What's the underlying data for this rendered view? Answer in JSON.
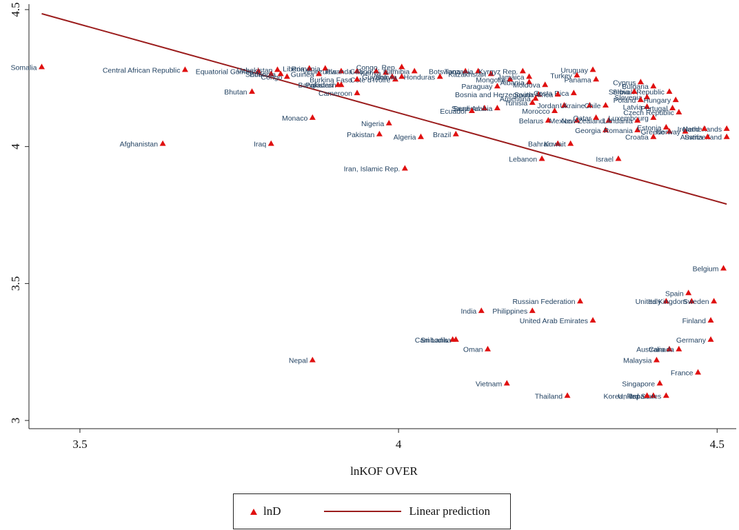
{
  "chart_data": {
    "type": "scatter",
    "title": "",
    "xlabel": "lnKOF OVER",
    "ylabel": "",
    "xlim": [
      3.42,
      4.53
    ],
    "ylim": [
      2.97,
      4.52
    ],
    "xticks": [
      "3.5",
      "4",
      "4.5"
    ],
    "yticks": [
      "3",
      "3.5",
      "4",
      "4.5"
    ],
    "xtick_values": [
      3.5,
      4.0,
      4.5
    ],
    "ytick_values": [
      3.0,
      3.5,
      4.0,
      4.5
    ],
    "grid": false,
    "legend_position": "bottom-center",
    "marker_color": "#e01010",
    "line_color": "#9b1c1c",
    "label_color": "#1f3f5f",
    "series": [
      {
        "name": "lnD",
        "kind": "scatter",
        "points": [
          {
            "label": "Somalia",
            "x": 3.44,
            "y": 4.29
          },
          {
            "label": "Central African Republic",
            "x": 3.665,
            "y": 4.28
          },
          {
            "label": "Equatorial Guinea",
            "x": 3.78,
            "y": 4.275
          },
          {
            "label": "Uzbekistan",
            "x": 3.81,
            "y": 4.28
          },
          {
            "label": "Liberia",
            "x": 3.86,
            "y": 4.285
          },
          {
            "label": "Romania",
            "x": 3.885,
            "y": 4.285
          },
          {
            "label": "Venezuela",
            "x": 3.91,
            "y": 4.275
          },
          {
            "label": "Rwanda",
            "x": 3.935,
            "y": 4.275
          },
          {
            "label": "Gabon",
            "x": 3.965,
            "y": 4.275
          },
          {
            "label": "Kenya",
            "x": 3.98,
            "y": 4.27
          },
          {
            "label": "Congo, Rep.",
            "x": 4.005,
            "y": 4.29
          },
          {
            "label": "Namibia",
            "x": 4.025,
            "y": 4.275
          },
          {
            "label": "Sudan",
            "x": 3.8,
            "y": 4.265
          },
          {
            "label": "Ethiopia",
            "x": 3.815,
            "y": 4.265
          },
          {
            "label": "Guinea",
            "x": 3.875,
            "y": 4.265
          },
          {
            "label": "Congo",
            "x": 3.825,
            "y": 4.255
          },
          {
            "label": "Guyana",
            "x": 3.99,
            "y": 4.255
          },
          {
            "label": "Cote d'Ivoire",
            "x": 3.995,
            "y": 4.245
          },
          {
            "label": "Burkina Faso",
            "x": 3.935,
            "y": 4.245
          },
          {
            "label": "Bolivia",
            "x": 4.005,
            "y": 4.255
          },
          {
            "label": "Honduras",
            "x": 4.065,
            "y": 4.255
          },
          {
            "label": "Bangladesh",
            "x": 3.91,
            "y": 4.225
          },
          {
            "label": "Pakistan",
            "x": 3.905,
            "y": 4.225
          },
          {
            "label": "Cameroon",
            "x": 3.935,
            "y": 4.195
          },
          {
            "label": "Bhutan",
            "x": 3.77,
            "y": 4.2
          },
          {
            "label": "Monaco",
            "x": 3.865,
            "y": 4.105
          },
          {
            "label": "Afghanistan",
            "x": 3.63,
            "y": 4.01
          },
          {
            "label": "Iraq",
            "x": 3.8,
            "y": 4.01
          },
          {
            "label": "Nigeria",
            "x": 3.985,
            "y": 4.085
          },
          {
            "label": "Pakistan",
            "x": 3.97,
            "y": 4.045
          },
          {
            "label": "Algeria",
            "x": 4.035,
            "y": 4.035
          },
          {
            "label": "Brazil",
            "x": 4.09,
            "y": 4.045
          },
          {
            "label": "Iran, Islamic Rep.",
            "x": 4.01,
            "y": 3.92
          },
          {
            "label": "Botswana",
            "x": 4.105,
            "y": 4.275
          },
          {
            "label": "Tanzania",
            "x": 4.125,
            "y": 4.275
          },
          {
            "label": "Kazakhstan",
            "x": 4.145,
            "y": 4.265
          },
          {
            "label": "Kyrgyz Rep.",
            "x": 4.195,
            "y": 4.275
          },
          {
            "label": "Mongolia",
            "x": 4.175,
            "y": 4.245
          },
          {
            "label": "Jamaica",
            "x": 4.205,
            "y": 4.255
          },
          {
            "label": "Albania",
            "x": 4.205,
            "y": 4.235
          },
          {
            "label": "Moldova",
            "x": 4.23,
            "y": 4.225
          },
          {
            "label": "Uruguay",
            "x": 4.305,
            "y": 4.28
          },
          {
            "label": "Turkey",
            "x": 4.28,
            "y": 4.26
          },
          {
            "label": "Panama",
            "x": 4.31,
            "y": 4.245
          },
          {
            "label": "Paraguay",
            "x": 4.155,
            "y": 4.22
          },
          {
            "label": "Bosnia and Herzegovina",
            "x": 4.22,
            "y": 4.19
          },
          {
            "label": "Costa Rica",
            "x": 4.275,
            "y": 4.195
          },
          {
            "label": "South Africa",
            "x": 4.25,
            "y": 4.19
          },
          {
            "label": "Argentina",
            "x": 4.215,
            "y": 4.175
          },
          {
            "label": "Tunisia",
            "x": 4.21,
            "y": 4.16
          },
          {
            "label": "Jordan",
            "x": 4.26,
            "y": 4.15
          },
          {
            "label": "Ukraine",
            "x": 4.3,
            "y": 4.15
          },
          {
            "label": "Chile",
            "x": 4.325,
            "y": 4.15
          },
          {
            "label": "Senegal",
            "x": 4.135,
            "y": 4.14
          },
          {
            "label": "Saudi Arabia",
            "x": 4.155,
            "y": 4.14
          },
          {
            "label": "Ecuador",
            "x": 4.115,
            "y": 4.13
          },
          {
            "label": "Morocco",
            "x": 4.245,
            "y": 4.13
          },
          {
            "label": "Belarus",
            "x": 4.235,
            "y": 4.095
          },
          {
            "label": "Mexico",
            "x": 4.28,
            "y": 4.095
          },
          {
            "label": "New Zealand",
            "x": 4.33,
            "y": 4.095
          },
          {
            "label": "Qatar",
            "x": 4.31,
            "y": 4.105
          },
          {
            "label": "Georgia",
            "x": 4.325,
            "y": 4.06
          },
          {
            "label": "Romania",
            "x": 4.375,
            "y": 4.06
          },
          {
            "label": "Bahrain",
            "x": 4.25,
            "y": 4.01
          },
          {
            "label": "Kuwait",
            "x": 4.27,
            "y": 4.01
          },
          {
            "label": "Lebanon",
            "x": 4.225,
            "y": 3.955
          },
          {
            "label": "Israel",
            "x": 4.345,
            "y": 3.955
          },
          {
            "label": "Cyprus",
            "x": 4.38,
            "y": 4.235
          },
          {
            "label": "Bulgaria",
            "x": 4.4,
            "y": 4.22
          },
          {
            "label": "Slovak Republic",
            "x": 4.425,
            "y": 4.2
          },
          {
            "label": "Serbia",
            "x": 4.37,
            "y": 4.2
          },
          {
            "label": "Slovenia",
            "x": 4.39,
            "y": 4.18
          },
          {
            "label": "Poland",
            "x": 4.38,
            "y": 4.17
          },
          {
            "label": "Hungary",
            "x": 4.435,
            "y": 4.17
          },
          {
            "label": "Latvia",
            "x": 4.39,
            "y": 4.145
          },
          {
            "label": "Portugal",
            "x": 4.43,
            "y": 4.14
          },
          {
            "label": "Czech Republic",
            "x": 4.44,
            "y": 4.125
          },
          {
            "label": "Luxembourg",
            "x": 4.4,
            "y": 4.105
          },
          {
            "label": "Lithuania",
            "x": 4.375,
            "y": 4.095
          },
          {
            "label": "Estonia",
            "x": 4.42,
            "y": 4.07
          },
          {
            "label": "Greece",
            "x": 4.425,
            "y": 4.055
          },
          {
            "label": "Norway",
            "x": 4.45,
            "y": 4.055
          },
          {
            "label": "Croatia",
            "x": 4.4,
            "y": 4.035
          },
          {
            "label": "Netherlands",
            "x": 4.515,
            "y": 4.065
          },
          {
            "label": "Ireland",
            "x": 4.48,
            "y": 4.065
          },
          {
            "label": "Switzerland",
            "x": 4.515,
            "y": 4.035
          },
          {
            "label": "Austria",
            "x": 4.485,
            "y": 4.035
          },
          {
            "label": "Belgium",
            "x": 4.51,
            "y": 3.555
          },
          {
            "label": "Spain",
            "x": 4.455,
            "y": 3.465
          },
          {
            "label": "Italy",
            "x": 4.42,
            "y": 3.435
          },
          {
            "label": "United Kingdom",
            "x": 4.46,
            "y": 3.435
          },
          {
            "label": "Sweden",
            "x": 4.495,
            "y": 3.435
          },
          {
            "label": "Finland",
            "x": 4.49,
            "y": 3.365
          },
          {
            "label": "Germany",
            "x": 4.49,
            "y": 3.295
          },
          {
            "label": "Australia",
            "x": 4.425,
            "y": 3.26
          },
          {
            "label": "Canada",
            "x": 4.44,
            "y": 3.26
          },
          {
            "label": "Malaysia",
            "x": 4.405,
            "y": 3.22
          },
          {
            "label": "France",
            "x": 4.47,
            "y": 3.175
          },
          {
            "label": "Singapore",
            "x": 4.41,
            "y": 3.135
          },
          {
            "label": "Japan",
            "x": 4.4,
            "y": 3.09
          },
          {
            "label": "United States",
            "x": 4.42,
            "y": 3.09
          },
          {
            "label": "Korea, Rep.",
            "x": 4.39,
            "y": 3.09
          },
          {
            "label": "Thailand",
            "x": 4.265,
            "y": 3.09
          },
          {
            "label": "Russian Federation",
            "x": 4.285,
            "y": 3.435
          },
          {
            "label": "India",
            "x": 4.13,
            "y": 3.4
          },
          {
            "label": "Philippines",
            "x": 4.21,
            "y": 3.4
          },
          {
            "label": "United Arab Emirates",
            "x": 4.305,
            "y": 3.365
          },
          {
            "label": "Cambodia",
            "x": 4.085,
            "y": 3.295
          },
          {
            "label": "Sri Lanka",
            "x": 4.09,
            "y": 3.295
          },
          {
            "label": "Oman",
            "x": 4.14,
            "y": 3.26
          },
          {
            "label": "Vietnam",
            "x": 4.17,
            "y": 3.135
          },
          {
            "label": "Nepal",
            "x": 3.865,
            "y": 3.22
          }
        ]
      },
      {
        "name": "Linear prediction",
        "kind": "line",
        "points": [
          {
            "x": 3.44,
            "y": 4.485
          },
          {
            "x": 4.515,
            "y": 3.79
          }
        ]
      }
    ]
  },
  "legend": {
    "scatter_label": "lnD",
    "line_label": "Linear prediction"
  }
}
